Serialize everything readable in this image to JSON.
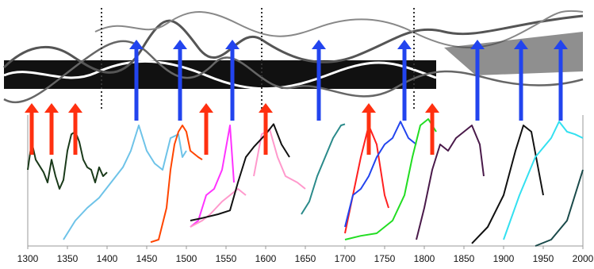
{
  "chart_data": {
    "type": "line",
    "xlim": [
      1300,
      2000
    ],
    "ylim": [
      0,
      100
    ],
    "xticks": [
      1300,
      1350,
      1400,
      1450,
      1500,
      1550,
      1600,
      1650,
      1700,
      1750,
      1800,
      1850,
      1900,
      1950,
      2000
    ],
    "series": [
      {
        "color": "#1a3a1a",
        "x": [
          1300,
          1305,
          1310,
          1320,
          1325,
          1330,
          1335,
          1340,
          1345,
          1350,
          1355,
          1360,
          1365,
          1370,
          1375,
          1380,
          1385,
          1390,
          1395,
          1400
        ],
        "values": [
          60,
          82,
          68,
          58,
          50,
          68,
          55,
          45,
          52,
          75,
          88,
          90,
          82,
          68,
          62,
          60,
          50,
          62,
          55,
          58
        ]
      },
      {
        "color": "#6ec3e8",
        "x": [
          1345,
          1360,
          1375,
          1390,
          1405,
          1420,
          1430,
          1440,
          1450,
          1460,
          1470,
          1480,
          1490,
          1495,
          1500
        ],
        "values": [
          5,
          20,
          30,
          38,
          50,
          62,
          75,
          95,
          75,
          65,
          60,
          85,
          88,
          70,
          75
        ]
      },
      {
        "color": "#ff4500",
        "x": [
          1455,
          1465,
          1475,
          1480,
          1485,
          1490,
          1495,
          1500,
          1505,
          1515,
          1520
        ],
        "values": [
          3,
          5,
          30,
          60,
          80,
          90,
          95,
          90,
          75,
          70,
          68
        ]
      },
      {
        "color": "#ff33ff",
        "x": [
          1505,
          1515,
          1525,
          1535,
          1545,
          1555,
          1560
        ],
        "values": [
          15,
          20,
          40,
          45,
          60,
          95,
          50
        ]
      },
      {
        "color": "#ff99cc",
        "x": [
          1505,
          1520,
          1530,
          1545,
          1555,
          1565,
          1575
        ],
        "values": [
          15,
          20,
          25,
          35,
          40,
          45,
          40
        ]
      },
      {
        "color": "#ff99cc",
        "x": [
          1585,
          1595,
          1605,
          1615,
          1625,
          1640,
          1650
        ],
        "values": [
          55,
          88,
          92,
          70,
          55,
          50,
          45
        ]
      },
      {
        "color": "#111111",
        "x": [
          1505,
          1520,
          1540,
          1555,
          1565,
          1575,
          1585,
          1600,
          1610,
          1620,
          1630
        ],
        "values": [
          20,
          22,
          25,
          28,
          50,
          70,
          78,
          88,
          96,
          80,
          70
        ]
      },
      {
        "color": "#2a8a8a",
        "x": [
          1645,
          1655,
          1665,
          1675,
          1685,
          1695,
          1700
        ],
        "values": [
          25,
          35,
          55,
          70,
          85,
          95,
          96
        ]
      },
      {
        "color": "#ff2020",
        "x": [
          1700,
          1710,
          1720,
          1730,
          1740,
          1750,
          1755
        ],
        "values": [
          10,
          40,
          70,
          95,
          80,
          40,
          30
        ]
      },
      {
        "color": "#2244ee",
        "x": [
          1700,
          1710,
          1720,
          1730,
          1740,
          1750,
          1760,
          1770,
          1780,
          1790
        ],
        "values": [
          15,
          40,
          45,
          55,
          70,
          80,
          85,
          98,
          85,
          80
        ]
      },
      {
        "color": "#22dd22",
        "x": [
          1700,
          1720,
          1740,
          1760,
          1775,
          1785,
          1795,
          1805,
          1810,
          1815
        ],
        "values": [
          5,
          8,
          10,
          20,
          40,
          70,
          95,
          100,
          95,
          90
        ]
      },
      {
        "color": "#4a1a4a",
        "x": [
          1790,
          1800,
          1810,
          1820,
          1830,
          1840,
          1850,
          1860,
          1870,
          1875
        ],
        "values": [
          5,
          30,
          60,
          80,
          75,
          85,
          90,
          95,
          80,
          55
        ]
      },
      {
        "color": "#111111",
        "x": [
          1860,
          1880,
          1900,
          1915,
          1925,
          1935,
          1950
        ],
        "values": [
          2,
          15,
          40,
          75,
          95,
          90,
          40
        ]
      },
      {
        "color": "#33e0f0",
        "x": [
          1900,
          1920,
          1940,
          1960,
          1970,
          1980,
          1990,
          2000
        ],
        "values": [
          5,
          40,
          70,
          85,
          98,
          90,
          88,
          85
        ]
      },
      {
        "color": "#1a4a4a",
        "x": [
          1940,
          1960,
          1980,
          1990,
          2000
        ],
        "values": [
          0,
          5,
          20,
          40,
          60
        ]
      }
    ],
    "arrows": [
      {
        "x": 1305,
        "color": "#ff3010"
      },
      {
        "x": 1330,
        "color": "#ff3010"
      },
      {
        "x": 1360,
        "color": "#ff3010"
      },
      {
        "x": 1437,
        "color": "#2244ee"
      },
      {
        "x": 1492,
        "color": "#2244ee"
      },
      {
        "x": 1525,
        "color": "#ff3010"
      },
      {
        "x": 1558,
        "color": "#2244ee"
      },
      {
        "x": 1600,
        "color": "#ff3010"
      },
      {
        "x": 1667,
        "color": "#2244ee"
      },
      {
        "x": 1730,
        "color": "#ff3010"
      },
      {
        "x": 1775,
        "color": "#2244ee"
      },
      {
        "x": 1810,
        "color": "#ff3010"
      },
      {
        "x": 1867,
        "color": "#2244ee"
      },
      {
        "x": 1922,
        "color": "#2244ee"
      },
      {
        "x": 1972,
        "color": "#2244ee"
      }
    ]
  }
}
